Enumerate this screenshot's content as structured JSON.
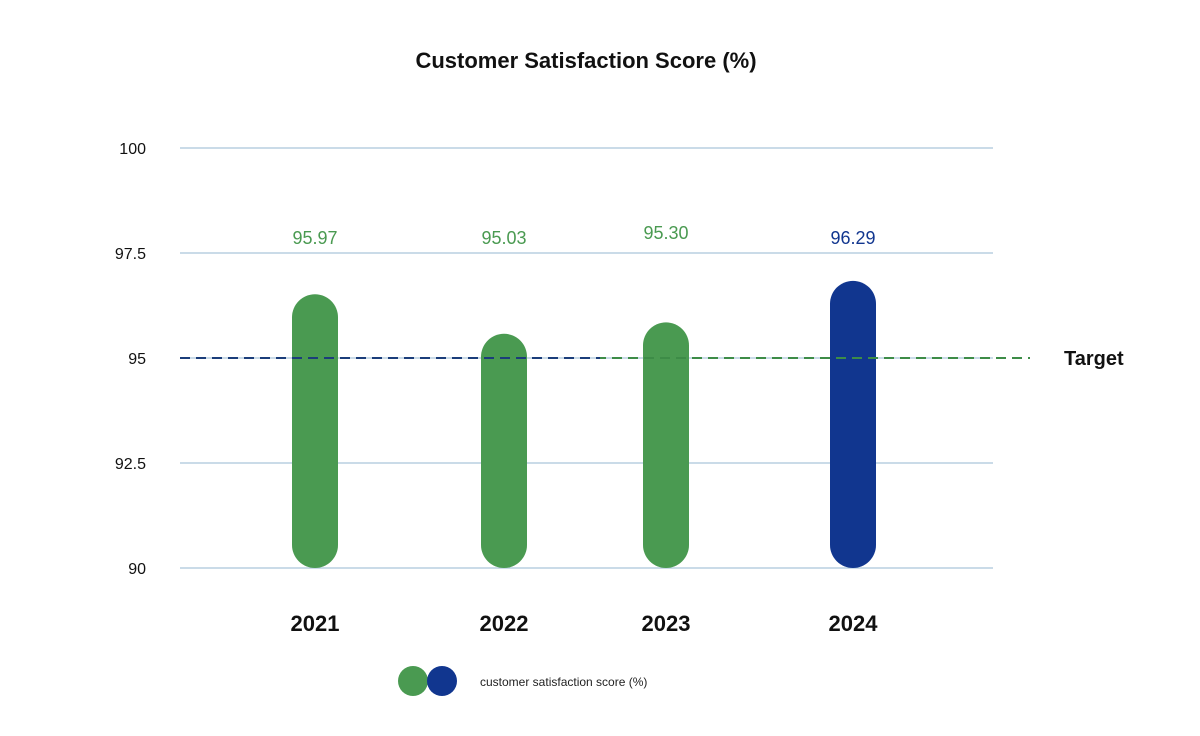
{
  "chart_data": {
    "type": "bar",
    "title": "Customer Satisfaction Score (%)",
    "categories": [
      "2021",
      "2022",
      "2023",
      "2024"
    ],
    "series": [
      {
        "name": "customer satisfaction score (%)",
        "values": [
          95.97,
          95.03,
          95.3,
          96.29
        ],
        "value_labels": [
          "95.97",
          "95.03",
          "95.30",
          "96.29"
        ]
      }
    ],
    "point_colors": [
      "#4a9a51",
      "#4a9a51",
      "#4a9a51",
      "#11368f"
    ],
    "ylim": [
      90,
      100
    ],
    "yticks": [
      90,
      92.5,
      95,
      97.5,
      100
    ],
    "ytick_labels": [
      "90",
      "92.5",
      "95",
      "97.5",
      "100"
    ],
    "grid": true,
    "target": {
      "label": "Target",
      "value": 95
    },
    "legend": {
      "position": "bottom",
      "label": "customer satisfaction score (%)",
      "swatch_colors": [
        "#4a9a51",
        "#11368f"
      ]
    },
    "colors": {
      "green": "#4a9a51",
      "blue": "#11368f",
      "grid": "#b9cfe0",
      "target_line_green": "#3d8c47",
      "target_line_blue": "#1b3d7a"
    }
  }
}
